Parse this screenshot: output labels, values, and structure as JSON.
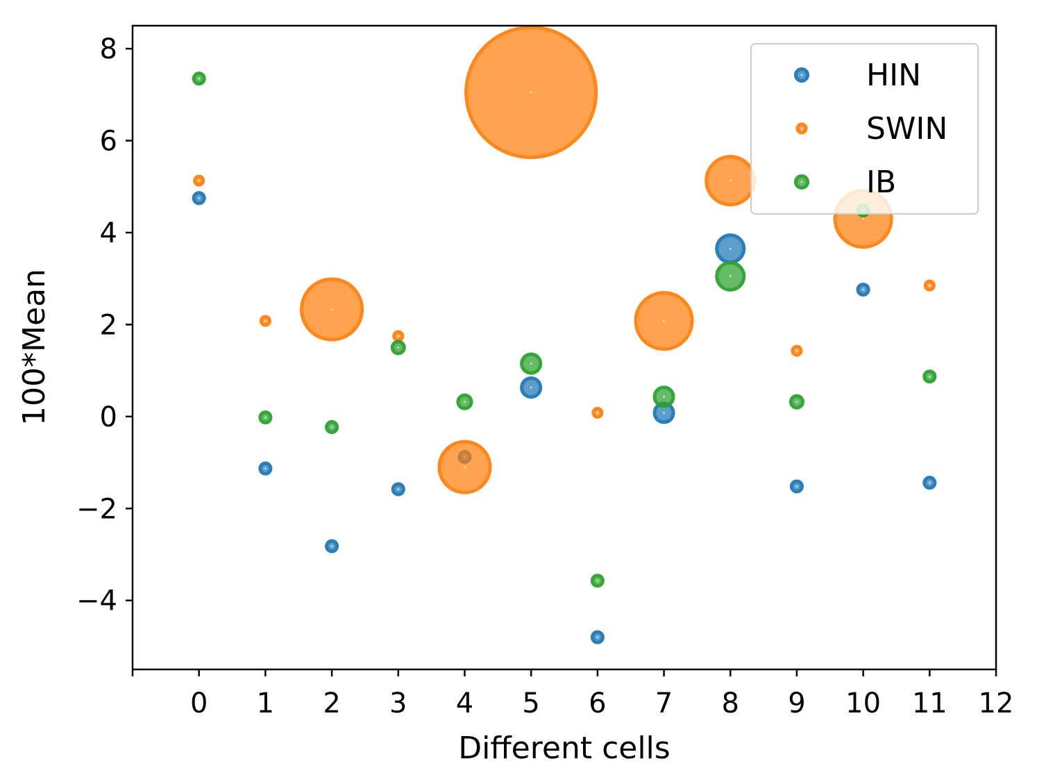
{
  "chart_data": {
    "type": "scatter",
    "title": "",
    "xlabel": "Different cells",
    "ylabel": "100*Mean",
    "xlim": [
      -1,
      12
    ],
    "ylim": [
      -5.5,
      8.5
    ],
    "xticks": [
      0,
      1,
      2,
      3,
      4,
      5,
      6,
      7,
      8,
      9,
      10,
      11,
      12
    ],
    "yticks": [
      -4,
      -2,
      0,
      2,
      4,
      6,
      8
    ],
    "ytick_labels": [
      "−4",
      "−2",
      "0",
      "2",
      "4",
      "6",
      "8"
    ],
    "legend_position": "top-right",
    "note": "marker size encodes a second variable (bubble chart); size values in relative units",
    "series": [
      {
        "name": "HIN",
        "color": "#1f77b4",
        "points": [
          {
            "x": 0,
            "y": 4.75,
            "size": 1.0
          },
          {
            "x": 1,
            "y": -1.13,
            "size": 1.0
          },
          {
            "x": 2,
            "y": -2.82,
            "size": 1.0
          },
          {
            "x": 3,
            "y": -1.58,
            "size": 1.0
          },
          {
            "x": 4,
            "y": -0.88,
            "size": 1.0
          },
          {
            "x": 5,
            "y": 0.63,
            "size": 1.6
          },
          {
            "x": 6,
            "y": -4.8,
            "size": 1.0
          },
          {
            "x": 7,
            "y": 0.08,
            "size": 1.6
          },
          {
            "x": 8,
            "y": 3.65,
            "size": 2.2
          },
          {
            "x": 9,
            "y": -1.52,
            "size": 1.0
          },
          {
            "x": 10,
            "y": 2.76,
            "size": 1.0
          },
          {
            "x": 11,
            "y": -1.44,
            "size": 1.0
          }
        ]
      },
      {
        "name": "SWIN",
        "color": "#ff7f0e",
        "points": [
          {
            "x": 0,
            "y": 5.13,
            "size": 0.85
          },
          {
            "x": 1,
            "y": 2.08,
            "size": 0.85
          },
          {
            "x": 2,
            "y": 2.33,
            "size": 4.6
          },
          {
            "x": 3,
            "y": 1.75,
            "size": 0.85
          },
          {
            "x": 4,
            "y": -1.1,
            "size": 3.9
          },
          {
            "x": 5,
            "y": 7.05,
            "size": 9.6
          },
          {
            "x": 6,
            "y": 0.08,
            "size": 0.85
          },
          {
            "x": 7,
            "y": 2.08,
            "size": 4.3
          },
          {
            "x": 8,
            "y": 5.13,
            "size": 3.7
          },
          {
            "x": 9,
            "y": 1.43,
            "size": 0.85
          },
          {
            "x": 10,
            "y": 4.3,
            "size": 4.3
          },
          {
            "x": 11,
            "y": 2.85,
            "size": 0.85
          }
        ]
      },
      {
        "name": "IB",
        "color": "#2ca02c",
        "points": [
          {
            "x": 0,
            "y": 7.35,
            "size": 1.0
          },
          {
            "x": 1,
            "y": -0.02,
            "size": 1.0
          },
          {
            "x": 2,
            "y": -0.23,
            "size": 1.0
          },
          {
            "x": 3,
            "y": 1.5,
            "size": 1.1
          },
          {
            "x": 4,
            "y": 0.32,
            "size": 1.2
          },
          {
            "x": 5,
            "y": 1.15,
            "size": 1.6
          },
          {
            "x": 6,
            "y": -3.57,
            "size": 1.0
          },
          {
            "x": 7,
            "y": 0.43,
            "size": 1.6
          },
          {
            "x": 8,
            "y": 3.05,
            "size": 2.2
          },
          {
            "x": 9,
            "y": 0.32,
            "size": 1.1
          },
          {
            "x": 10,
            "y": 4.48,
            "size": 1.0
          },
          {
            "x": 11,
            "y": 0.87,
            "size": 1.0
          }
        ]
      }
    ]
  }
}
